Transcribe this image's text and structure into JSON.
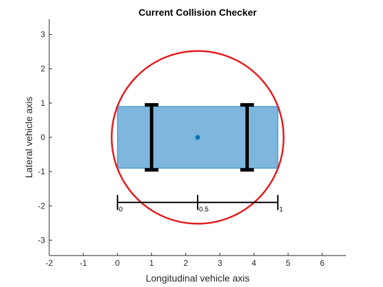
{
  "chart_data": {
    "type": "scatter",
    "title": "Current Collision Checker",
    "xlabel": "Longitudinal vehicle axis",
    "ylabel": "Lateral vehicle axis",
    "xlim": [
      -2,
      6.7
    ],
    "ylim": [
      -3.45,
      3.45
    ],
    "xticks": [
      -2,
      -1,
      0,
      1,
      2,
      3,
      4,
      5,
      6
    ],
    "yticks": [
      -3,
      -2,
      -1,
      0,
      1,
      2,
      3
    ],
    "grid": false,
    "vehicle_body": {
      "x_min": 0,
      "x_max": 4.7,
      "y_min": -0.9,
      "y_max": 0.9,
      "fill": "#7eb6dd",
      "edge": "#0072bd"
    },
    "axles": [
      {
        "x": 1.0,
        "y_min": -0.95,
        "y_max": 0.95,
        "cap_half_width": 0.2
      },
      {
        "x": 3.8,
        "y_min": -0.95,
        "y_max": 0.95,
        "cap_half_width": 0.2
      }
    ],
    "center_point": {
      "x": 2.35,
      "y": 0,
      "color": "#0072bd"
    },
    "collision_circle": {
      "cx": 2.35,
      "cy": 0,
      "r": 2.52,
      "color": "#e41a1c"
    },
    "scale_bar": {
      "y": -1.9,
      "tick_half_height": 0.22,
      "ticks": [
        {
          "x": 0,
          "label": "0"
        },
        {
          "x": 2.35,
          "label": "0.5"
        },
        {
          "x": 4.7,
          "label": "1"
        }
      ]
    }
  }
}
